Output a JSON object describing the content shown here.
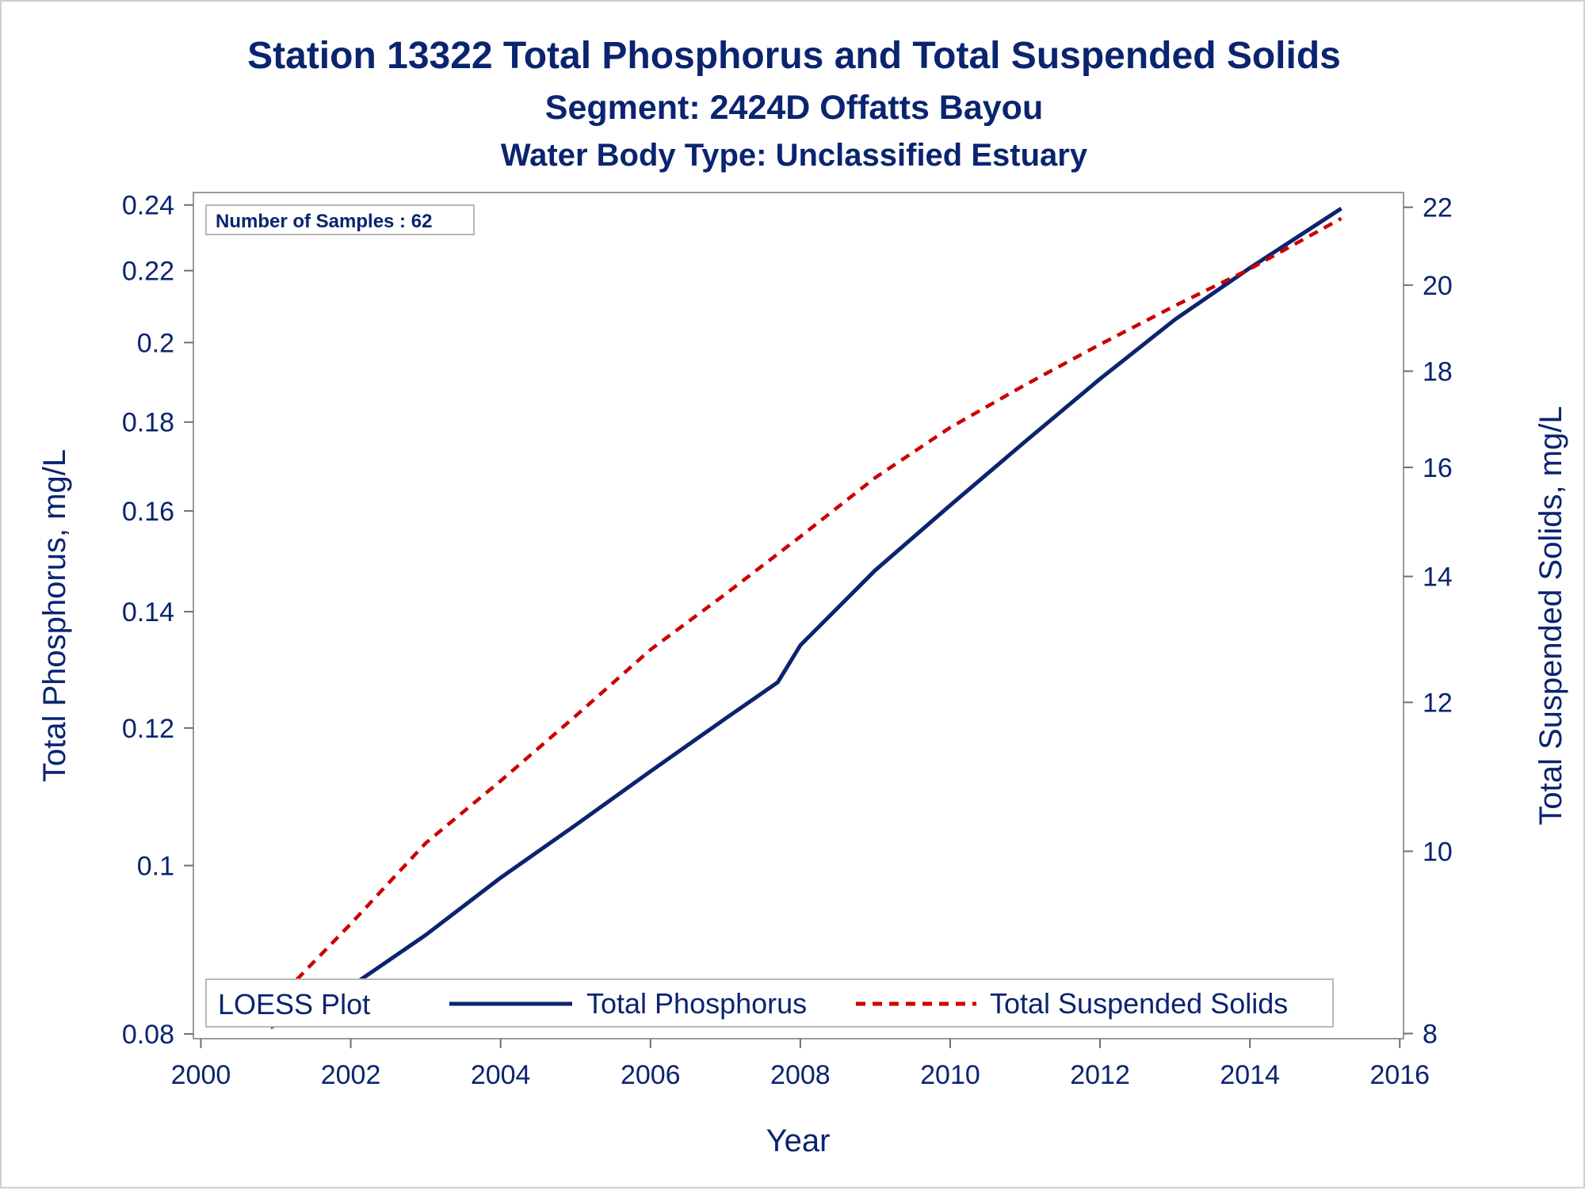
{
  "chart_data": {
    "type": "line",
    "title": "Station 13322  Total Phosphorus and Total Suspended Solids",
    "subtitle": "Segment: 2424D  Offatts Bayou",
    "subtitle2": "Water Body Type: Unclassified Estuary",
    "annotation": "Number of Samples : 62",
    "xlabel": "Year",
    "ylabel_left": "Total Phosphorus, mg/L",
    "ylabel_right": "Total Suspended Solids, mg/L",
    "x_ticks": [
      2000,
      2002,
      2004,
      2006,
      2008,
      2010,
      2012,
      2014,
      2016
    ],
    "y_left_ticks": [
      0.08,
      0.1,
      0.12,
      0.14,
      0.16,
      0.18,
      0.2,
      0.22,
      0.24
    ],
    "y_left_tick_labels": [
      "0.08",
      "0.1",
      "0.12",
      "0.14",
      "0.16",
      "0.18",
      "0.2",
      "0.22",
      "0.24"
    ],
    "y_right_ticks": [
      8,
      10,
      12,
      14,
      16,
      18,
      20,
      22
    ],
    "y_right_tick_labels": [
      "8",
      "10",
      "12",
      "14",
      "16",
      "18",
      "20",
      "22"
    ],
    "y_left_scale": "log",
    "y_right_scale": "log",
    "xlim": [
      1999.9,
      2016.05
    ],
    "y_left_lim": [
      0.0795,
      0.244
    ],
    "y_right_lim": [
      7.95,
      22.4
    ],
    "grid": false,
    "legend": {
      "title": "LOESS Plot",
      "placement": "bottom-left",
      "entries": [
        "Total Phosphorus",
        "Total Suspended Solids"
      ]
    },
    "series": [
      {
        "name": "Total Phosphorus",
        "axis": "left",
        "color": "#0a2470",
        "dash": "solid",
        "x": [
          2000.93,
          2002,
          2003,
          2004,
          2005,
          2006,
          2007,
          2007.7,
          2008,
          2009,
          2010,
          2011,
          2012,
          2013,
          2014,
          2015.22
        ],
        "y": [
          0.0807,
          0.0852,
          0.0912,
          0.0984,
          0.1055,
          0.1133,
          0.1215,
          0.1275,
          0.1339,
          0.1479,
          0.1612,
          0.1754,
          0.1906,
          0.2062,
          0.2208,
          0.2389
        ]
      },
      {
        "name": "Total Suspended Solids",
        "axis": "right",
        "color": "#cc0000",
        "dash": "dashed",
        "x": [
          2000.97,
          2002,
          2003,
          2004,
          2005,
          2006,
          2007,
          2008,
          2009,
          2010,
          2011,
          2012,
          2013,
          2014,
          2015.22
        ],
        "y": [
          8.3,
          9.15,
          10.1,
          10.9,
          11.8,
          12.8,
          13.7,
          14.7,
          15.8,
          16.8,
          17.7,
          18.6,
          19.5,
          20.4,
          21.7
        ]
      }
    ]
  }
}
